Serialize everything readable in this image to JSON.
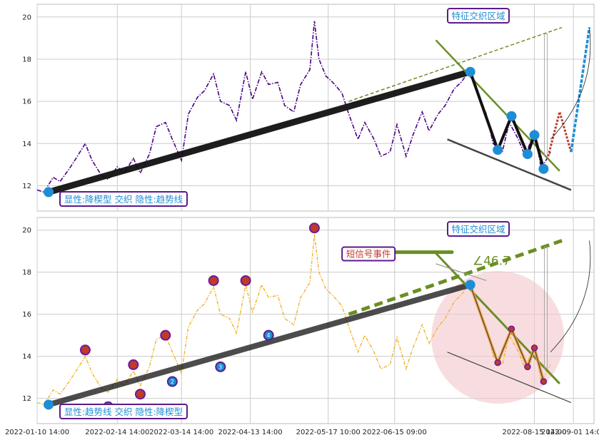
{
  "chart_data": [
    {
      "type": "line",
      "panel": "top",
      "ylim": [
        10.8,
        20.6
      ],
      "yticks": [
        12,
        14,
        16,
        18,
        20
      ],
      "grid": true,
      "price_color": "#4b0082",
      "price_series": [
        [
          "2022-01-10",
          11.8
        ],
        [
          "2022-01-13",
          11.7
        ],
        [
          "2022-01-17",
          12.4
        ],
        [
          "2022-01-20",
          12.2
        ],
        [
          "2022-01-24",
          12.8
        ],
        [
          "2022-01-27",
          13.3
        ],
        [
          "2022-01-31",
          14.0
        ],
        [
          "2022-02-03",
          13.2
        ],
        [
          "2022-02-07",
          12.5
        ],
        [
          "2022-02-10",
          12.3
        ],
        [
          "2022-02-14",
          12.9
        ],
        [
          "2022-02-17",
          12.6
        ],
        [
          "2022-02-21",
          13.3
        ],
        [
          "2022-02-24",
          12.6
        ],
        [
          "2022-02-28",
          13.5
        ],
        [
          "2022-03-03",
          14.8
        ],
        [
          "2022-03-07",
          15.0
        ],
        [
          "2022-03-10",
          14.2
        ],
        [
          "2022-03-14",
          13.2
        ],
        [
          "2022-03-17",
          15.4
        ],
        [
          "2022-03-21",
          16.2
        ],
        [
          "2022-03-24",
          16.5
        ],
        [
          "2022-03-28",
          17.3
        ],
        [
          "2022-03-31",
          16.0
        ],
        [
          "2022-04-04",
          15.8
        ],
        [
          "2022-04-07",
          15.1
        ],
        [
          "2022-04-11",
          17.4
        ],
        [
          "2022-04-14",
          16.1
        ],
        [
          "2022-04-18",
          17.4
        ],
        [
          "2022-04-21",
          16.8
        ],
        [
          "2022-04-25",
          16.9
        ],
        [
          "2022-04-28",
          15.8
        ],
        [
          "2022-05-02",
          15.5
        ],
        [
          "2022-05-05",
          16.8
        ],
        [
          "2022-05-09",
          17.5
        ],
        [
          "2022-05-11",
          19.8
        ],
        [
          "2022-05-13",
          18.0
        ],
        [
          "2022-05-16",
          17.2
        ],
        [
          "2022-05-19",
          16.9
        ],
        [
          "2022-05-23",
          16.4
        ],
        [
          "2022-05-26",
          15.4
        ],
        [
          "2022-05-30",
          14.2
        ],
        [
          "2022-06-02",
          15.0
        ],
        [
          "2022-06-06",
          14.2
        ],
        [
          "2022-06-09",
          13.4
        ],
        [
          "2022-06-13",
          13.6
        ],
        [
          "2022-06-16",
          14.9
        ],
        [
          "2022-06-20",
          13.4
        ],
        [
          "2022-06-23",
          14.4
        ],
        [
          "2022-06-27",
          15.5
        ],
        [
          "2022-06-30",
          14.6
        ],
        [
          "2022-07-04",
          15.4
        ],
        [
          "2022-07-07",
          15.8
        ],
        [
          "2022-07-11",
          16.6
        ],
        [
          "2022-07-14",
          16.9
        ],
        [
          "2022-07-18",
          17.5
        ],
        [
          "2022-07-21",
          16.5
        ],
        [
          "2022-07-25",
          15.4
        ],
        [
          "2022-07-28",
          14.0
        ],
        [
          "2022-08-01",
          13.6
        ],
        [
          "2022-08-04",
          15.0
        ],
        [
          "2022-08-08",
          14.2
        ],
        [
          "2022-08-11",
          13.4
        ],
        [
          "2022-08-15",
          14.6
        ],
        [
          "2022-08-18",
          12.8
        ],
        [
          "2022-08-22",
          13.6
        ]
      ],
      "trendline_black": [
        [
          "2022-01-15",
          11.7
        ],
        [
          "2022-07-18",
          17.4
        ]
      ],
      "trendline_dashed": [
        [
          "2022-05-26",
          16.0
        ],
        [
          "2022-08-27",
          19.5
        ]
      ],
      "pattern_points": [
        [
          "2022-01-15",
          11.7
        ],
        [
          "2022-07-18",
          17.4
        ],
        [
          "2022-07-30",
          13.7
        ],
        [
          "2022-08-05",
          15.3
        ],
        [
          "2022-08-12",
          13.5
        ],
        [
          "2022-08-15",
          14.4
        ],
        [
          "2022-08-19",
          12.8
        ]
      ],
      "upper_line": [
        [
          "2022-07-03",
          18.9
        ],
        [
          "2022-08-26",
          12.7
        ]
      ],
      "lower_line": [
        [
          "2022-07-08",
          14.2
        ],
        [
          "2022-08-31",
          11.8
        ]
      ],
      "projection_zigzag": [
        [
          "2022-08-21",
          13.4
        ],
        [
          "2022-08-26",
          15.5
        ],
        [
          "2022-08-31",
          13.6
        ],
        [
          "2022-09-08",
          19.5
        ]
      ],
      "annotations": {
        "bottom_left": "显性:降楔型 交织 隐性:趋势线",
        "top_right": "特征交织区域"
      }
    },
    {
      "type": "line",
      "panel": "bottom",
      "ylim": [
        10.8,
        20.6
      ],
      "yticks": [
        12,
        14,
        16,
        18,
        20
      ],
      "grid": true,
      "price_color": "#f0b429",
      "price_series_same_as_top": true,
      "angle_label": "∠46.7",
      "event_label": "短信号事件",
      "red_markers": [
        [
          "2022-01-31",
          14.3
        ],
        [
          "2022-02-21",
          13.6
        ],
        [
          "2022-02-24",
          12.2
        ],
        [
          "2022-03-07",
          15.0
        ],
        [
          "2022-03-28",
          17.6
        ],
        [
          "2022-04-11",
          17.6
        ],
        [
          "2022-05-11",
          20.1
        ]
      ],
      "blue_markers": [
        {
          "label": "1",
          "date": "2022-02-10",
          "value": 11.6
        },
        {
          "label": "2",
          "date": "2022-03-10",
          "value": 12.8
        },
        {
          "label": "3",
          "date": "2022-03-31",
          "value": 13.5
        },
        {
          "label": "4",
          "date": "2022-04-21",
          "value": 15.0
        }
      ],
      "trendline_black": [
        [
          "2022-01-15",
          11.7
        ],
        [
          "2022-07-18",
          17.4
        ]
      ],
      "trendline_dashed": [
        [
          "2022-05-26",
          16.0
        ],
        [
          "2022-08-27",
          19.5
        ]
      ],
      "annotations": {
        "bottom_left": "显性:趋势线 交织 隐性:降楔型",
        "top_right": "特征交织区域"
      }
    }
  ],
  "x_axis": {
    "start": "2022-01-10",
    "end": "2022-09-10",
    "tick_labels": [
      {
        "date": "2022-01-10",
        "label": "2022-01-10 14:00"
      },
      {
        "date": "2022-02-14",
        "label": "2022-02-14 14:00"
      },
      {
        "date": "2022-03-14",
        "label": "2022-03-14 14:00"
      },
      {
        "date": "2022-04-13",
        "label": "2022-04-13 14:00"
      },
      {
        "date": "2022-05-17",
        "label": "2022-05-17 10:00"
      },
      {
        "date": "2022-06-15",
        "label": "2022-06-15 09:00"
      },
      {
        "date": "2022-08-15",
        "label": "2022-08-15 14:00"
      },
      {
        "date": "2022-09-01",
        "label": "2022-09-01 14:00"
      }
    ]
  },
  "colors": {
    "grid": "#cccccc",
    "trend": "#111111",
    "green": "#6b8e23",
    "marker_blue": "#1f8dd6",
    "label_border": "#5c1a8a",
    "label_text": "#1f8dd6",
    "event_text": "#c0392b",
    "circle_fill": "#f4c7cc"
  }
}
